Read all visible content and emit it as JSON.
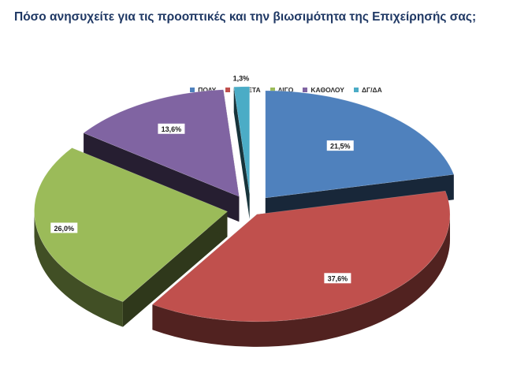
{
  "title": "Πόσο ανησυχείτε για τις προοπτικές και την βιωσιμότητα της Επιχείρησής σας;",
  "chart_data": {
    "type": "pie",
    "title": "Πόσο ανησυχείτε για τις προοπτικές και την βιωσιμότητα της Επιχείρησής σας;",
    "categories": [
      "ΠΟΛΥ",
      "ΑΡΚΕΤΑ",
      "ΛΙΓΟ",
      "ΚΑΘΟΛΟΥ",
      "ΔΓ/ΔΑ"
    ],
    "values": [
      21.5,
      37.6,
      26.0,
      13.6,
      1.3
    ],
    "value_labels": [
      "21,5%",
      "37,6%",
      "26,0%",
      "13,6%",
      "1,3%"
    ],
    "colors": [
      "#4f81bd",
      "#c0504d",
      "#9bbb59",
      "#8064a2",
      "#4bacc6"
    ],
    "legend_position": "top",
    "style": "3d-exploded"
  }
}
